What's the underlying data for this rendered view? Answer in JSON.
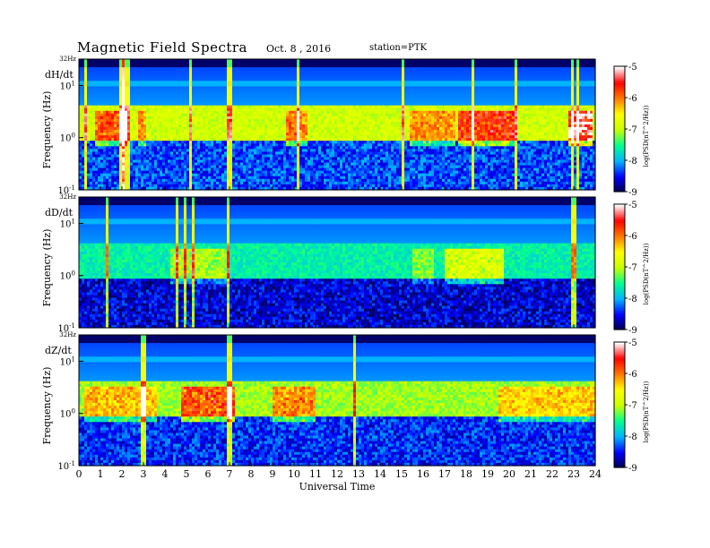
{
  "header": {
    "title": "Magnetic  Field  Spectra",
    "date": "Oct. 8  , 2016",
    "station": "station=PTK"
  },
  "chart_data": {
    "type": "heatmap",
    "xlabel": "Universal Time",
    "x_ticks": [
      "0",
      "1",
      "2",
      "3",
      "4",
      "5",
      "6",
      "7",
      "8",
      "9",
      "10",
      "11",
      "12",
      "13",
      "14",
      "15",
      "16",
      "17",
      "18",
      "19",
      "20",
      "21",
      "22",
      "23",
      "24"
    ],
    "xlim": [
      0,
      24
    ],
    "y_scale": "log",
    "ylabel": "Frequency  (Hz)",
    "ylim_hz": [
      0.1,
      32
    ],
    "y_top_label": "32Hz",
    "y_ticks": [
      {
        "value": 10,
        "base": "10",
        "exp": "1"
      },
      {
        "value": 1,
        "base": "10",
        "exp": "0"
      },
      {
        "value": 0.1,
        "base": "10",
        "exp": "-1"
      }
    ],
    "colorbar": {
      "label": "log(PSD(nT^2/Hz))",
      "range": [
        -9,
        -5
      ],
      "ticks": [
        "-5",
        "-6",
        "-7",
        "-8",
        "-9"
      ],
      "colors": [
        "#000044",
        "#0000ff",
        "#00b4ff",
        "#00ff90",
        "#c8ff00",
        "#ffff00",
        "#ff7800",
        "#ff0000",
        "#ffffff"
      ]
    },
    "panels": [
      {
        "label": "dH/dt",
        "background_level": -8.3,
        "pc1_band_level": -6.9
      },
      {
        "label": "dD/dt",
        "background_level": -8.6,
        "pc1_band_level": -7.6
      },
      {
        "label": "dZ/dt",
        "background_level": -8.4,
        "pc1_band_level": -7.1
      }
    ]
  }
}
